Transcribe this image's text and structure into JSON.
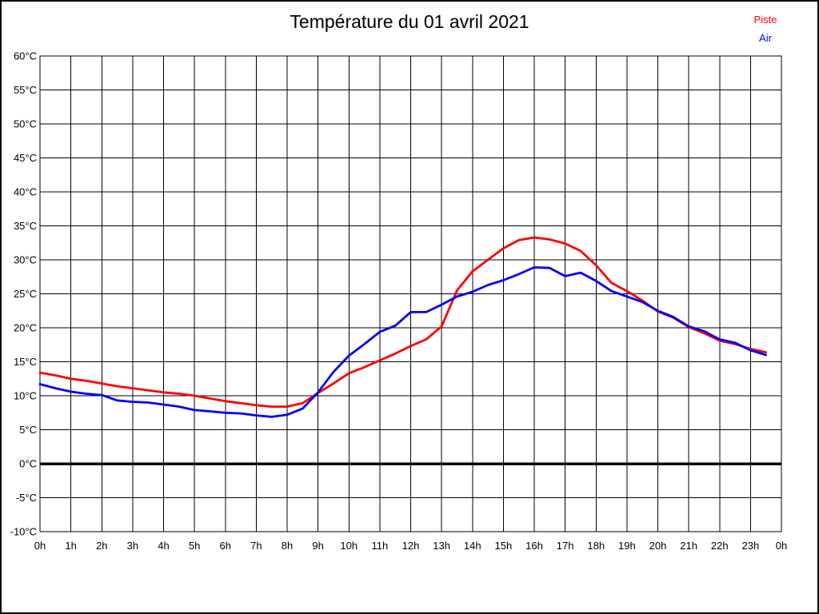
{
  "page": {
    "background": "#ffffff",
    "border_color": "#000000"
  },
  "header": {
    "title": "Température du 01 avril 2021"
  },
  "legend": {
    "position": "top-right",
    "items": [
      {
        "label": "Piste",
        "color": "#ff0000"
      },
      {
        "label": "Air",
        "color": "#0000ff"
      }
    ]
  },
  "chart_data": {
    "type": "line",
    "title": "Température du 01 avril 2021",
    "xlabel": "",
    "ylabel": "",
    "x_unit": "hour",
    "y_unit": "°C",
    "xlim": [
      0,
      24
    ],
    "ylim": [
      -10,
      60
    ],
    "x_tick_step": 1,
    "y_tick_step": 5,
    "grid": true,
    "grid_color": "#000000",
    "zero_line_value": 0,
    "legend_position": "top-right",
    "x_tick_labels": [
      "0h",
      "1h",
      "2h",
      "3h",
      "4h",
      "5h",
      "6h",
      "7h",
      "8h",
      "9h",
      "10h",
      "11h",
      "12h",
      "13h",
      "14h",
      "15h",
      "16h",
      "17h",
      "18h",
      "19h",
      "20h",
      "21h",
      "22h",
      "23h",
      "0h"
    ],
    "y_tick_labels": [
      "60°C",
      "55°C",
      "50°C",
      "45°C",
      "40°C",
      "35°C",
      "30°C",
      "25°C",
      "20°C",
      "15°C",
      "10°C",
      "5°C",
      "0°C",
      "-5°C",
      "-10°C"
    ],
    "x": [
      0,
      0.5,
      1,
      1.5,
      2,
      2.5,
      3,
      3.5,
      4,
      4.5,
      5,
      5.5,
      6,
      6.5,
      7,
      7.5,
      8,
      8.5,
      9,
      9.5,
      10,
      10.5,
      11,
      11.5,
      12,
      12.5,
      13,
      13.5,
      14,
      14.5,
      15,
      15.5,
      16,
      16.5,
      17,
      17.5,
      18,
      18.5,
      19,
      19.5,
      20,
      20.5,
      21,
      21.5,
      22,
      22.5,
      23,
      23.5
    ],
    "series": [
      {
        "name": "Piste",
        "color": "#ff0000",
        "values": [
          13.4,
          13.0,
          12.5,
          12.2,
          11.8,
          11.4,
          11.1,
          10.8,
          10.5,
          10.3,
          10.0,
          9.6,
          9.2,
          8.9,
          8.6,
          8.4,
          8.4,
          8.9,
          10.4,
          11.8,
          13.3,
          14.2,
          15.2,
          16.2,
          17.3,
          18.3,
          20.2,
          25.5,
          28.3,
          30.0,
          31.7,
          32.9,
          33.3,
          33.0,
          32.4,
          31.3,
          29.2,
          26.6,
          25.4,
          24.0,
          22.4,
          21.5,
          20.1,
          19.2,
          18.1,
          17.6,
          16.9,
          16.4
        ]
      },
      {
        "name": "Air",
        "color": "#0000ff",
        "values": [
          11.7,
          11.1,
          10.6,
          10.3,
          10.1,
          9.3,
          9.1,
          9.0,
          8.7,
          8.4,
          7.9,
          7.7,
          7.5,
          7.4,
          7.1,
          6.9,
          7.2,
          8.1,
          10.5,
          13.5,
          15.9,
          17.6,
          19.4,
          20.3,
          22.3,
          22.3,
          23.4,
          24.6,
          25.3,
          26.3,
          27.0,
          27.9,
          28.9,
          28.8,
          27.6,
          28.1,
          26.9,
          25.4,
          24.6,
          23.8,
          22.5,
          21.6,
          20.2,
          19.5,
          18.3,
          17.8,
          16.7,
          16.0
        ]
      }
    ]
  }
}
